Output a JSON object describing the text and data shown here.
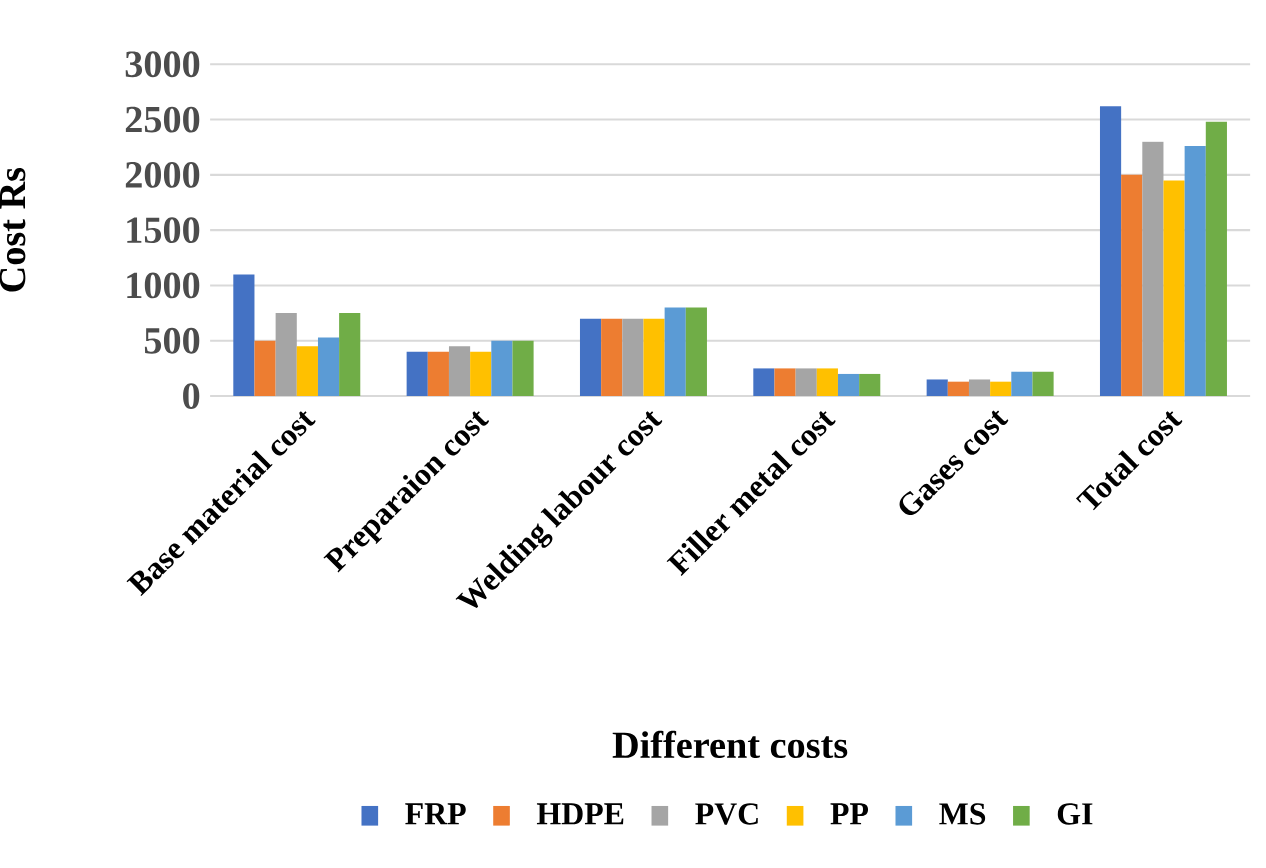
{
  "chart_data": {
    "type": "bar",
    "xlabel": "Different costs",
    "ylabel": "Cost Rs",
    "categories": [
      "Base material cost",
      "Preparaion cost",
      "Welding labour cost",
      "Filler metal cost",
      "Gases cost",
      "Total cost"
    ],
    "series": [
      {
        "name": "FRP",
        "color": "#4472c4",
        "values": [
          1100,
          400,
          700,
          250,
          150,
          2620
        ]
      },
      {
        "name": "HDPE",
        "color": "#ed7d31",
        "values": [
          500,
          400,
          700,
          250,
          130,
          2000
        ]
      },
      {
        "name": "PVC",
        "color": "#a5a5a5",
        "values": [
          750,
          450,
          700,
          250,
          150,
          2300
        ]
      },
      {
        "name": "PP",
        "color": "#ffc000",
        "values": [
          450,
          400,
          700,
          250,
          130,
          1950
        ]
      },
      {
        "name": "MS",
        "color": "#5b9bd5",
        "values": [
          530,
          500,
          800,
          200,
          220,
          2260
        ]
      },
      {
        "name": "GI",
        "color": "#70ad47",
        "values": [
          750,
          500,
          800,
          200,
          220,
          2480
        ]
      }
    ],
    "ylim": [
      0,
      3000
    ],
    "yticks": [
      0,
      500,
      1000,
      1500,
      2000,
      2500,
      3000
    ],
    "grid": "y",
    "legend": "bottom"
  }
}
